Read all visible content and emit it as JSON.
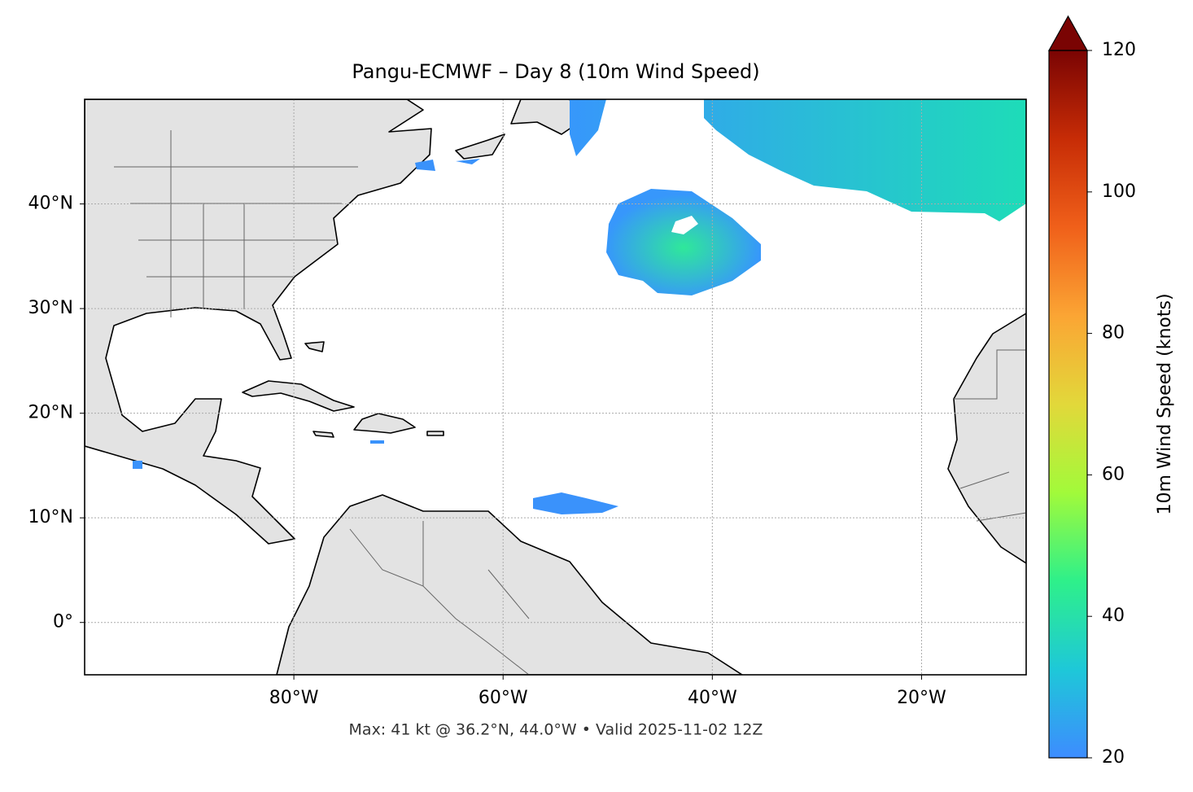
{
  "map": {
    "title": "Pangu-ECMWF – Day 8 (10m Wind Speed)",
    "annotation": "Max: 41 kt @ 36.2°N, 44.0°W • Valid 2025-11-02 12Z",
    "lonlim": [
      -100,
      -10
    ],
    "latlim": [
      -5,
      50
    ],
    "lonticks": [
      {
        "value": -80,
        "label": "80°W"
      },
      {
        "value": -60,
        "label": "60°W"
      },
      {
        "value": -40,
        "label": "40°W"
      },
      {
        "value": -20,
        "label": "20°W"
      }
    ],
    "latticks": [
      {
        "value": 40,
        "label": "40°N"
      },
      {
        "value": 30,
        "label": "30°N"
      },
      {
        "value": 20,
        "label": "20°N"
      },
      {
        "value": 10,
        "label": "10°N"
      },
      {
        "value": 0,
        "label": "0°"
      }
    ],
    "grid": true,
    "colorbar": {
      "label": "10m Wind Speed (knots)",
      "lim": [
        20,
        120
      ],
      "ticks": [
        20,
        40,
        60,
        80,
        100,
        120
      ],
      "extend": "max",
      "colors": [
        "#3d8cff",
        "#1ec8d8",
        "#2ef08a",
        "#a2fa3a",
        "#e2d83a",
        "#fba534",
        "#f0601a",
        "#c72c06",
        "#7a0403"
      ]
    }
  }
}
